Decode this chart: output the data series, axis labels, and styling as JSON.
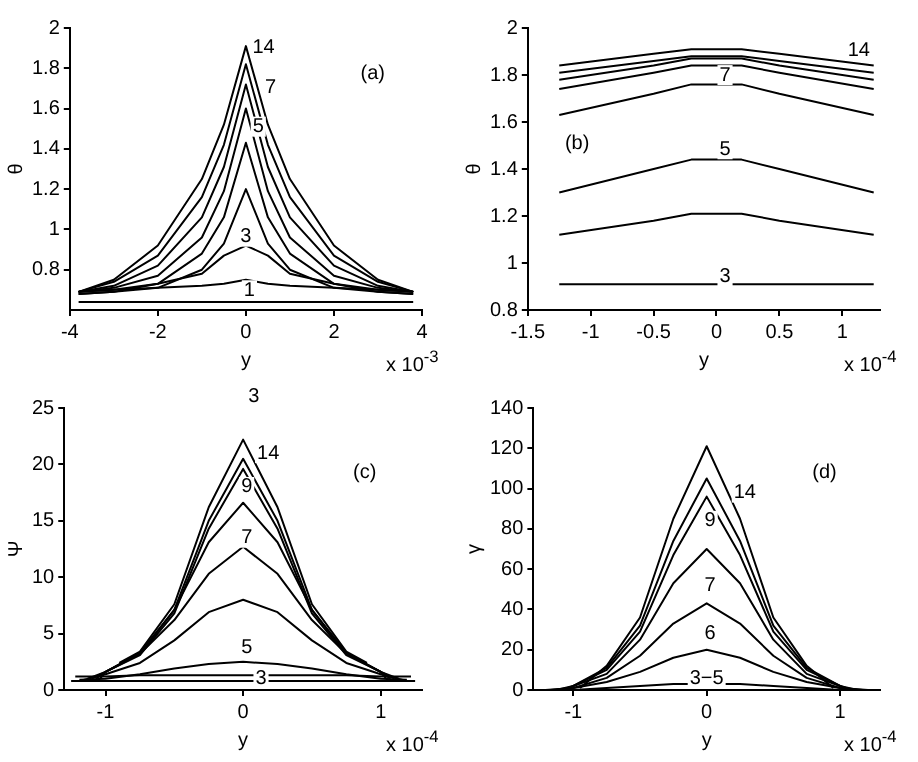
{
  "chart_data": [
    {
      "type": "line",
      "xlabel": "y",
      "ylabel": "θ",
      "xlim": [
        -4,
        4
      ],
      "xticks": [
        -4,
        -2,
        0,
        2,
        4
      ],
      "ylim": [
        0.6,
        2
      ],
      "yticks": [
        0.8,
        1,
        1.2,
        1.4,
        1.6,
        1.8,
        2
      ],
      "grid": false,
      "legend": false,
      "marker": "none",
      "line_style": "solid",
      "x": [
        -3.8,
        -3,
        -2,
        -1,
        -0.5,
        0,
        0.5,
        1,
        2,
        3,
        3.8
      ],
      "series": [
        {
          "color": "#000000",
          "values": [
            0.64,
            0.64,
            0.64,
            0.64,
            0.64,
            0.64,
            0.64,
            0.64,
            0.64,
            0.64,
            0.64
          ]
        },
        {
          "color": "#000000",
          "values": [
            0.69,
            0.7,
            0.71,
            0.72,
            0.73,
            0.75,
            0.73,
            0.72,
            0.71,
            0.7,
            0.69
          ]
        },
        {
          "color": "#000000",
          "values": [
            0.69,
            0.7,
            0.73,
            0.78,
            0.87,
            0.92,
            0.87,
            0.78,
            0.73,
            0.7,
            0.69
          ]
        },
        {
          "color": "#000000",
          "values": [
            0.68,
            0.69,
            0.71,
            0.8,
            0.93,
            1.2,
            0.93,
            0.8,
            0.71,
            0.69,
            0.68
          ]
        },
        {
          "color": "#000000",
          "values": [
            0.68,
            0.69,
            0.73,
            0.88,
            1.06,
            1.43,
            1.06,
            0.88,
            0.73,
            0.69,
            0.68
          ]
        },
        {
          "color": "#000000",
          "values": [
            0.69,
            0.71,
            0.77,
            0.96,
            1.19,
            1.6,
            1.19,
            0.96,
            0.77,
            0.71,
            0.69
          ]
        },
        {
          "color": "#000000",
          "values": [
            0.69,
            0.72,
            0.82,
            1.06,
            1.31,
            1.72,
            1.31,
            1.06,
            0.82,
            0.72,
            0.69
          ]
        },
        {
          "color": "#000000",
          "values": [
            0.69,
            0.74,
            0.87,
            1.16,
            1.42,
            1.82,
            1.42,
            1.16,
            0.87,
            0.74,
            0.69
          ]
        },
        {
          "color": "#000000",
          "values": [
            0.69,
            0.75,
            0.92,
            1.25,
            1.52,
            1.91,
            1.52,
            1.25,
            0.92,
            0.75,
            0.69
          ]
        }
      ],
      "annotations": [
        "(a)",
        "x 10$^{-3}$",
        "14",
        "7",
        "5",
        "3",
        "1"
      ]
    },
    {
      "type": "line",
      "xlabel": "y",
      "ylabel": "θ",
      "xlim": [
        -1.5,
        1.3
      ],
      "xticks": [
        -1.5,
        -1,
        -0.5,
        0,
        0.5,
        1
      ],
      "ylim": [
        0.8,
        2
      ],
      "yticks": [
        0.8,
        1,
        1.2,
        1.4,
        1.6,
        1.8,
        2
      ],
      "grid": false,
      "legend": false,
      "marker": "none",
      "line_style": "solid",
      "x": [
        -1.25,
        -0.5,
        -0.2,
        0,
        0.2,
        0.5,
        1.25
      ],
      "series": [
        {
          "color": "#000000",
          "values": [
            0.91,
            0.91,
            0.91,
            0.91,
            0.91,
            0.91,
            0.91
          ]
        },
        {
          "color": "#000000",
          "values": [
            1.12,
            1.18,
            1.21,
            1.21,
            1.21,
            1.18,
            1.12
          ]
        },
        {
          "color": "#000000",
          "values": [
            1.3,
            1.4,
            1.44,
            1.44,
            1.44,
            1.4,
            1.3
          ]
        },
        {
          "color": "#000000",
          "values": [
            1.63,
            1.72,
            1.76,
            1.76,
            1.76,
            1.72,
            1.63
          ]
        },
        {
          "color": "#000000",
          "values": [
            1.74,
            1.81,
            1.84,
            1.84,
            1.84,
            1.81,
            1.74
          ]
        },
        {
          "color": "#000000",
          "values": [
            1.78,
            1.84,
            1.87,
            1.87,
            1.87,
            1.84,
            1.78
          ]
        },
        {
          "color": "#000000",
          "values": [
            1.81,
            1.86,
            1.88,
            1.88,
            1.88,
            1.86,
            1.81
          ]
        },
        {
          "color": "#000000",
          "values": [
            1.84,
            1.89,
            1.91,
            1.91,
            1.91,
            1.89,
            1.84
          ]
        }
      ],
      "annotations": [
        "(b)",
        "x 10$^{-4}$",
        "14",
        "7",
        "5",
        "3"
      ]
    },
    {
      "type": "line",
      "xlabel": "y",
      "ylabel": "Ψ",
      "xlim": [
        -1.3,
        1.3
      ],
      "xticks": [
        -1,
        0,
        1
      ],
      "ylim": [
        0,
        25
      ],
      "yticks": [
        0,
        5,
        10,
        15,
        20,
        25
      ],
      "grid": false,
      "legend": false,
      "marker": "none",
      "line_style": "solid",
      "series": [
        {
          "color": "#000000",
          "x": [
            -1.25,
            -1,
            -0.75,
            -0.5,
            -0.25,
            0,
            0.25,
            0.5,
            0.75,
            1,
            1.25
          ],
          "values": [
            0.8,
            0.8,
            0.8,
            0.8,
            0.8,
            0.8,
            0.8,
            0.8,
            0.8,
            0.8,
            0.8
          ]
        },
        {
          "color": "#000000",
          "x": [
            -1.22,
            -1,
            -0.75,
            -0.5,
            -0.25,
            0,
            0.25,
            0.5,
            0.75,
            1,
            1.22
          ],
          "values": [
            1.2,
            1.2,
            1.3,
            1.3,
            1.3,
            1.3,
            1.3,
            1.3,
            1.3,
            1.2,
            1.2
          ]
        },
        {
          "color": "#000000",
          "x": [
            -1.19,
            -1,
            -0.75,
            -0.5,
            -0.25,
            0,
            0.25,
            0.5,
            0.75,
            1,
            1.19
          ],
          "values": [
            0.9,
            1.0,
            1.4,
            1.9,
            2.3,
            2.5,
            2.3,
            1.9,
            1.4,
            1.0,
            0.9
          ]
        },
        {
          "color": "#000000",
          "x": [
            -1.16,
            -1,
            -0.75,
            -0.5,
            -0.25,
            0,
            0.25,
            0.5,
            0.75,
            1,
            1.16
          ],
          "values": [
            0.9,
            1.4,
            2.4,
            4.4,
            6.9,
            8,
            6.9,
            4.4,
            2.4,
            1.4,
            0.9
          ]
        },
        {
          "color": "#000000",
          "x": [
            -1.13,
            -1,
            -0.75,
            -0.5,
            -0.25,
            0,
            0.25,
            0.5,
            0.75,
            1,
            1.13
          ],
          "values": [
            1.0,
            1.6,
            3.2,
            6.2,
            10.3,
            12.7,
            10.3,
            6.2,
            3.2,
            1.6,
            1.0
          ]
        },
        {
          "color": "#000000",
          "x": [
            -1.1,
            -1,
            -0.75,
            -0.5,
            -0.25,
            0,
            0.25,
            0.5,
            0.75,
            1,
            1.1
          ],
          "values": [
            1.0,
            1.6,
            3.3,
            7.1,
            13.1,
            16.6,
            13.1,
            7.1,
            3.3,
            1.6,
            1.0
          ]
        },
        {
          "color": "#000000",
          "x": [
            -1.07,
            -1,
            -0.75,
            -0.5,
            -0.25,
            0,
            0.25,
            0.5,
            0.75,
            1,
            1.07
          ],
          "values": [
            1.0,
            1.6,
            3.1,
            6.8,
            14.3,
            19.6,
            14.3,
            6.8,
            3.1,
            1.6,
            1.0
          ]
        },
        {
          "color": "#000000",
          "x": [
            -1.04,
            -1,
            -0.75,
            -0.5,
            -0.25,
            0,
            0.25,
            0.5,
            0.75,
            1,
            1.04
          ],
          "values": [
            1.0,
            1.6,
            3.2,
            7.1,
            15.0,
            20.5,
            15.0,
            7.1,
            3.2,
            1.6,
            1.0
          ]
        },
        {
          "color": "#000000",
          "x": [
            -0.9,
            -0.75,
            -0.5,
            -0.25,
            0,
            0.25,
            0.5,
            0.75,
            0.9
          ],
          "values": [
            2.4,
            3.4,
            7.6,
            16.2,
            22.2,
            16.2,
            7.6,
            3.4,
            2.4
          ]
        }
      ],
      "annotations": [
        "(c)",
        "x 10$^{-4}$",
        "3",
        "14",
        "9",
        "7",
        "5",
        "3"
      ]
    },
    {
      "type": "line",
      "xlabel": "y",
      "ylabel": "γ",
      "xlim": [
        -1.3,
        1.3
      ],
      "xticks": [
        -1,
        0,
        1
      ],
      "ylim": [
        0,
        140
      ],
      "yticks": [
        0,
        20,
        40,
        60,
        80,
        100,
        120,
        140
      ],
      "grid": false,
      "legend": false,
      "marker": "none",
      "line_style": "solid",
      "series": [
        {
          "color": "#000000",
          "x": [
            -1.25,
            -1,
            -0.75,
            -0.5,
            -0.25,
            0,
            0.25,
            0.5,
            0.75,
            1,
            1.25
          ],
          "values": [
            0,
            0,
            1,
            2,
            3,
            3,
            3,
            2,
            1,
            0,
            0
          ]
        },
        {
          "color": "#000000",
          "x": [
            -1.21,
            -1,
            -0.75,
            -0.5,
            -0.25,
            0,
            0.25,
            0.5,
            0.75,
            1,
            1.21
          ],
          "values": [
            0,
            1,
            4,
            9,
            16,
            20,
            16,
            9,
            4,
            1,
            0
          ]
        },
        {
          "color": "#000000",
          "x": [
            -1.17,
            -1,
            -0.75,
            -0.5,
            -0.25,
            0,
            0.25,
            0.5,
            0.75,
            1,
            1.17
          ],
          "values": [
            0,
            1,
            6,
            17,
            33,
            43,
            33,
            17,
            6,
            1,
            0
          ]
        },
        {
          "color": "#000000",
          "x": [
            -1.13,
            -1,
            -0.75,
            -0.5,
            -0.25,
            0,
            0.25,
            0.5,
            0.75,
            1,
            1.13
          ],
          "values": [
            0,
            2,
            8,
            25,
            53,
            70,
            53,
            25,
            8,
            2,
            0
          ]
        },
        {
          "color": "#000000",
          "x": [
            -1.09,
            -1,
            -0.75,
            -0.5,
            -0.25,
            0,
            0.25,
            0.5,
            0.75,
            1,
            1.09
          ],
          "values": [
            0,
            2,
            10,
            29,
            67,
            96,
            67,
            29,
            10,
            2,
            0
          ]
        },
        {
          "color": "#000000",
          "x": [
            -1.05,
            -1,
            -0.75,
            -0.5,
            -0.25,
            0,
            0.25,
            0.5,
            0.75,
            1,
            1.05
          ],
          "values": [
            0,
            2,
            11,
            32,
            74,
            105,
            74,
            32,
            11,
            2,
            0
          ]
        },
        {
          "color": "#000000",
          "x": [
            -0.95,
            -0.75,
            -0.5,
            -0.25,
            0,
            0.25,
            0.5,
            0.75,
            0.95
          ],
          "values": [
            1,
            12,
            36,
            85,
            121,
            85,
            36,
            12,
            1
          ]
        }
      ],
      "annotations": [
        "(d)",
        "x 10$^{-4}$",
        "14",
        "9",
        "7",
        "6",
        "3−5"
      ]
    }
  ]
}
